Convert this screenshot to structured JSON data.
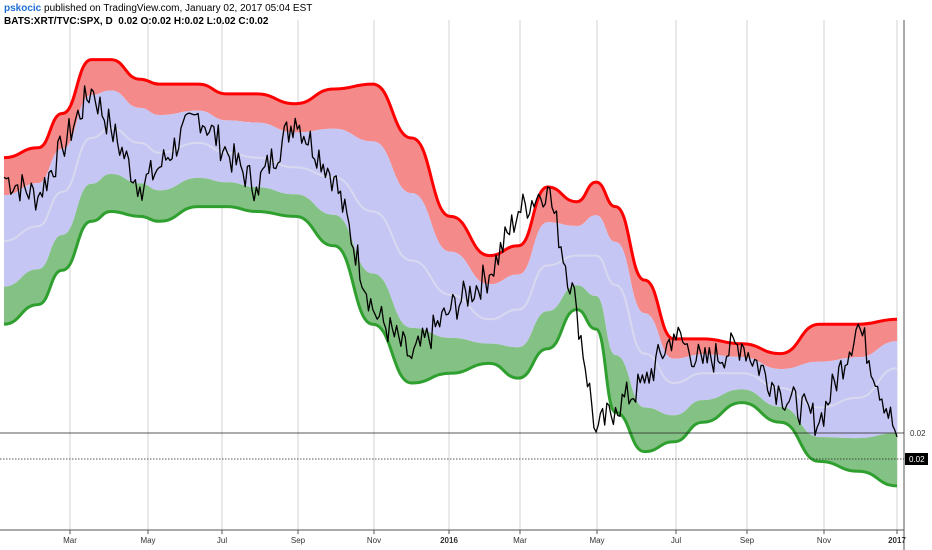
{
  "header": {
    "author": "pskocic",
    "published": " published on TradingView.com, January 02, 2017 05:04 EST",
    "symbol": "BATS:XRT/TVC:SPX, D",
    "last": "0.02",
    "open_label": "O:",
    "open": "0.02",
    "high_label": "H:",
    "high": "0.02",
    "low_label": "L:",
    "low": "0.02",
    "close_label": "C:",
    "close": "0.02"
  },
  "price_scale": {
    "level_label": "0.02",
    "last_label": "0.02"
  },
  "colors": {
    "upper_band": "#ff0000",
    "upper_fill": "#f48a8a",
    "middle_fill": "#c6c6f5",
    "lower_fill": "#84c184",
    "lower_band": "#2fa02f",
    "price_line": "#000000"
  },
  "chart_data": {
    "type": "line",
    "title": "",
    "x_ticks": [
      "Mar",
      "May",
      "Jul",
      "Sep",
      "Nov",
      "2016",
      "Mar",
      "May",
      "Jul",
      "Sep",
      "Nov",
      "2017"
    ],
    "x": [
      0,
      35,
      60,
      90,
      110,
      140,
      160,
      200,
      230,
      260,
      300,
      340,
      380,
      420,
      460,
      500,
      530,
      560,
      590,
      610,
      630,
      660,
      690,
      720,
      760,
      800,
      840,
      880,
      920
    ],
    "series": [
      {
        "name": "upper",
        "values": [
          76,
          78,
          85,
          96,
          96,
          92,
          91,
          91,
          89,
          89,
          87,
          90,
          91,
          80,
          64,
          56,
          58,
          70,
          67,
          71,
          66,
          51,
          39,
          39,
          38,
          36,
          42,
          42,
          43
        ]
      },
      {
        "name": "middle",
        "values": [
          59,
          62,
          69,
          80,
          82,
          79,
          77,
          79,
          77,
          76,
          74,
          72,
          65,
          55,
          48,
          43,
          45,
          54,
          56,
          56,
          50,
          36,
          30,
          32,
          32,
          29,
          25,
          27,
          33
        ]
      },
      {
        "name": "lower",
        "values": [
          42,
          46,
          53,
          63,
          65,
          64,
          63,
          66,
          66,
          65,
          64,
          58,
          42,
          30,
          32,
          34,
          31,
          37,
          45,
          41,
          24,
          16,
          18,
          22,
          26,
          22,
          14,
          12,
          9
        ]
      },
      {
        "name": "price",
        "values": [
          72,
          68,
          78,
          90,
          82,
          70,
          74,
          85,
          77,
          70,
          84,
          72,
          45,
          35,
          45,
          52,
          65,
          70,
          45,
          20,
          25,
          30,
          40,
          34,
          38,
          28,
          22,
          42,
          19
        ]
      }
    ],
    "ylim": [
      0,
      100
    ],
    "grid": true
  }
}
